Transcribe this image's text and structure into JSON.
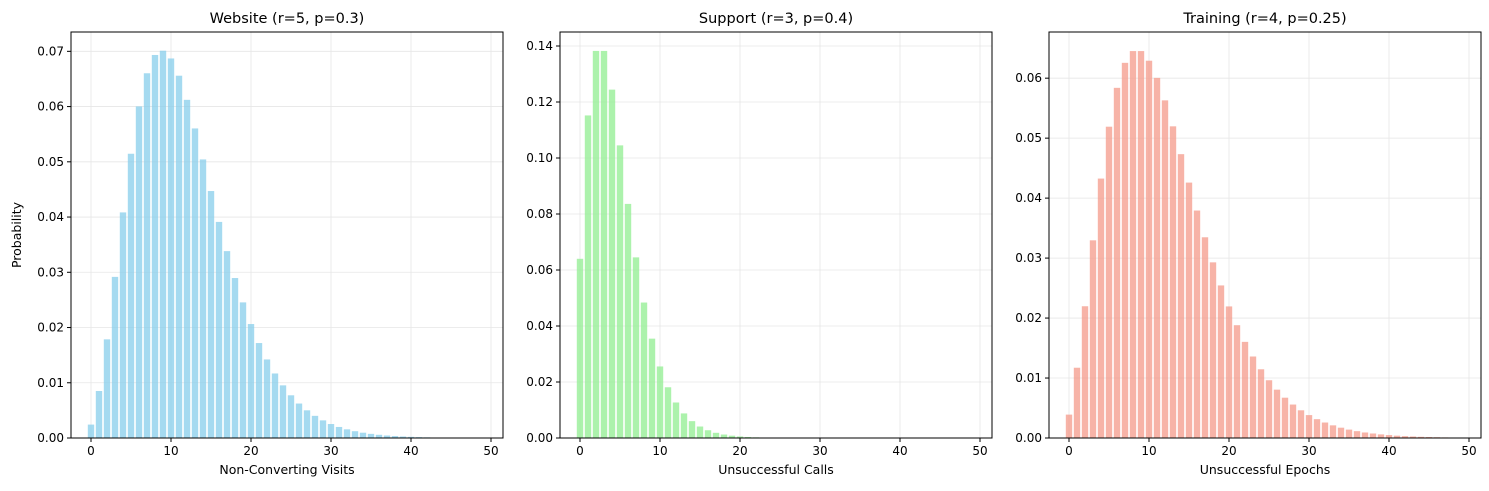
{
  "chart_data": [
    {
      "type": "bar",
      "title": "Website (r=5, p=0.3)",
      "xlabel": "Non-Converting Visits",
      "ylabel": "Probability",
      "color": "#87CEEB",
      "xlim": [
        -2.5,
        51.5
      ],
      "ylim": [
        0,
        0.0735
      ],
      "xticks": [
        0,
        10,
        20,
        30,
        40,
        50
      ],
      "yticks": [
        0.0,
        0.01,
        0.02,
        0.03,
        0.04,
        0.05,
        0.06,
        0.07
      ],
      "ytick_decimals": 2,
      "grid": true,
      "x": [
        0,
        1,
        2,
        3,
        4,
        5,
        6,
        7,
        8,
        9,
        10,
        11,
        12,
        13,
        14,
        15,
        16,
        17,
        18,
        19,
        20,
        21,
        22,
        23,
        24,
        25,
        26,
        27,
        28,
        29,
        30,
        31,
        32,
        33,
        34,
        35,
        36,
        37,
        38,
        39,
        40,
        41,
        42,
        43,
        44,
        45,
        46,
        47,
        48,
        49
      ],
      "values": [
        0.00243,
        0.00851,
        0.01786,
        0.02917,
        0.04084,
        0.05146,
        0.06003,
        0.06603,
        0.06934,
        0.07011,
        0.06871,
        0.06559,
        0.06122,
        0.05604,
        0.05043,
        0.04471,
        0.03912,
        0.03383,
        0.02896,
        0.02455,
        0.02063,
        0.01719,
        0.01422,
        0.01168,
        0.00953,
        0.00773,
        0.00624,
        0.00501,
        0.00401,
        0.00319,
        0.00253,
        0.002,
        0.00157,
        0.00123,
        0.00096,
        0.00075,
        0.00058,
        0.00045,
        0.00035,
        0.00027,
        0.00021,
        0.00016,
        0.00012,
        9e-05,
        7e-05,
        5e-05,
        4e-05,
        3e-05,
        2e-05,
        2e-05
      ]
    },
    {
      "type": "bar",
      "title": "Support (r=3, p=0.4)",
      "xlabel": "Unsuccessful Calls",
      "ylabel": "",
      "color": "#90EE90",
      "xlim": [
        -2.5,
        51.5
      ],
      "ylim": [
        0,
        0.145
      ],
      "xticks": [
        0,
        10,
        20,
        30,
        40,
        50
      ],
      "yticks": [
        0.0,
        0.02,
        0.04,
        0.06,
        0.08,
        0.1,
        0.12,
        0.14
      ],
      "ytick_decimals": 2,
      "grid": true,
      "x": [
        0,
        1,
        2,
        3,
        4,
        5,
        6,
        7,
        8,
        9,
        10,
        11,
        12,
        13,
        14,
        15,
        16,
        17,
        18,
        19,
        20,
        21,
        22,
        23,
        24,
        25,
        26,
        27,
        28,
        29,
        30,
        31,
        32,
        33,
        34,
        35,
        36,
        37,
        38,
        39,
        40,
        41,
        42,
        43,
        44,
        45,
        46,
        47,
        48,
        49
      ],
      "values": [
        0.064,
        0.1152,
        0.13824,
        0.13824,
        0.12442,
        0.10451,
        0.08361,
        0.06451,
        0.04838,
        0.03548,
        0.02555,
        0.01812,
        0.01268,
        0.00878,
        0.00602,
        0.0041,
        0.00277,
        0.00186,
        0.00124,
        0.00083,
        0.00055,
        0.00036,
        0.00024,
        0.00016,
        0.0001,
        7e-05,
        4e-05,
        3e-05,
        2e-05,
        1e-05,
        1e-05,
        0,
        0,
        0,
        0,
        0,
        0,
        0,
        0,
        0,
        0,
        0,
        0,
        0,
        0,
        0,
        0,
        0,
        0,
        0
      ]
    },
    {
      "type": "bar",
      "title": "Training (r=4, p=0.25)",
      "xlabel": "Unsuccessful Epochs",
      "ylabel": "",
      "color": "#F4998A",
      "xlim": [
        -2.5,
        51.5
      ],
      "ylim": [
        0,
        0.0677
      ],
      "xticks": [
        0,
        10,
        20,
        30,
        40,
        50
      ],
      "yticks": [
        0.0,
        0.01,
        0.02,
        0.03,
        0.04,
        0.05,
        0.06
      ],
      "ytick_decimals": 2,
      "grid": true,
      "x": [
        0,
        1,
        2,
        3,
        4,
        5,
        6,
        7,
        8,
        9,
        10,
        11,
        12,
        13,
        14,
        15,
        16,
        17,
        18,
        19,
        20,
        21,
        22,
        23,
        24,
        25,
        26,
        27,
        28,
        29,
        30,
        31,
        32,
        33,
        34,
        35,
        36,
        37,
        38,
        39,
        40,
        41,
        42,
        43,
        44,
        45,
        46,
        47,
        48,
        49
      ],
      "values": [
        0.0039,
        0.01172,
        0.02197,
        0.03296,
        0.04326,
        0.05191,
        0.05839,
        0.06256,
        0.06452,
        0.06452,
        0.06291,
        0.06005,
        0.0563,
        0.05197,
        0.04733,
        0.04259,
        0.03793,
        0.03347,
        0.02929,
        0.02544,
        0.02194,
        0.01881,
        0.01603,
        0.01359,
        0.01146,
        0.00963,
        0.00806,
        0.00672,
        0.00558,
        0.00462,
        0.00382,
        0.00314,
        0.00258,
        0.00211,
        0.00172,
        0.0014,
        0.00114,
        0.00092,
        0.00075,
        0.0006,
        0.00049,
        0.00039,
        0.00031,
        0.00025,
        0.0002,
        0.00016,
        0.00013,
        0.0001,
        8e-05,
        6e-05
      ]
    }
  ]
}
